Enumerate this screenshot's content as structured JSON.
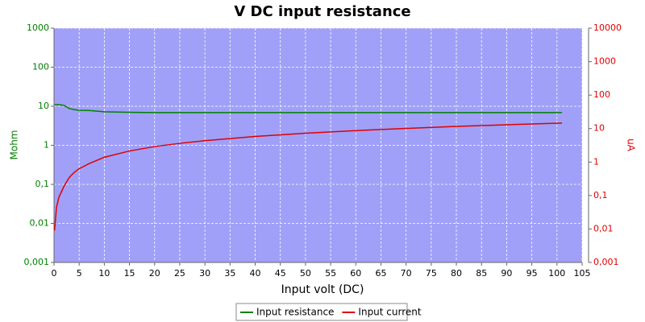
{
  "chart_data": {
    "type": "line",
    "title": "V DC input resistance",
    "x_label": "Input volt (DC)",
    "y_label": "Mohm",
    "y2_label": "uA",
    "x": [
      0.1,
      0.5,
      1,
      2,
      3,
      4,
      5,
      7,
      10,
      15,
      20,
      25,
      30,
      40,
      50,
      60,
      70,
      80,
      90,
      101
    ],
    "series": [
      {
        "name": "Input resistance",
        "color": "#008000",
        "axis": "y",
        "values": [
          11,
          11,
          11,
          10.5,
          8.8,
          8.2,
          7.9,
          7.8,
          7.2,
          7.0,
          6.9,
          6.9,
          6.9,
          6.9,
          6.9,
          6.9,
          6.9,
          6.9,
          6.9,
          6.9
        ]
      },
      {
        "name": "Input current",
        "color": "#e00000",
        "axis": "y2",
        "values": [
          0.009,
          0.045,
          0.091,
          0.19,
          0.34,
          0.49,
          0.63,
          0.9,
          1.39,
          2.14,
          2.9,
          3.62,
          4.35,
          5.8,
          7.25,
          8.7,
          10.1,
          11.6,
          13,
          14.6
        ]
      }
    ],
    "xlim": [
      0,
      105
    ],
    "xticks": [
      0,
      5,
      10,
      15,
      20,
      25,
      30,
      35,
      40,
      45,
      50,
      55,
      60,
      65,
      70,
      75,
      80,
      85,
      90,
      95,
      100,
      105
    ],
    "ylim": [
      0.001,
      1000
    ],
    "y_log": true,
    "yticks": [
      {
        "value": 0.001,
        "label": "0,001"
      },
      {
        "value": 0.01,
        "label": "0,01"
      },
      {
        "value": 0.1,
        "label": "0,1"
      },
      1,
      10,
      100,
      1000
    ],
    "y2lim": [
      0.001,
      10000
    ],
    "y2_log": true,
    "y2ticks": [
      {
        "value": 0.001,
        "label": "0,001"
      },
      {
        "value": 0.01,
        "label": "0,01"
      },
      {
        "value": 0.1,
        "label": "0,1"
      },
      1,
      10,
      100,
      1000,
      10000
    ],
    "grid": true,
    "legend": "bottom",
    "plot_background": "#a0a0f8"
  }
}
